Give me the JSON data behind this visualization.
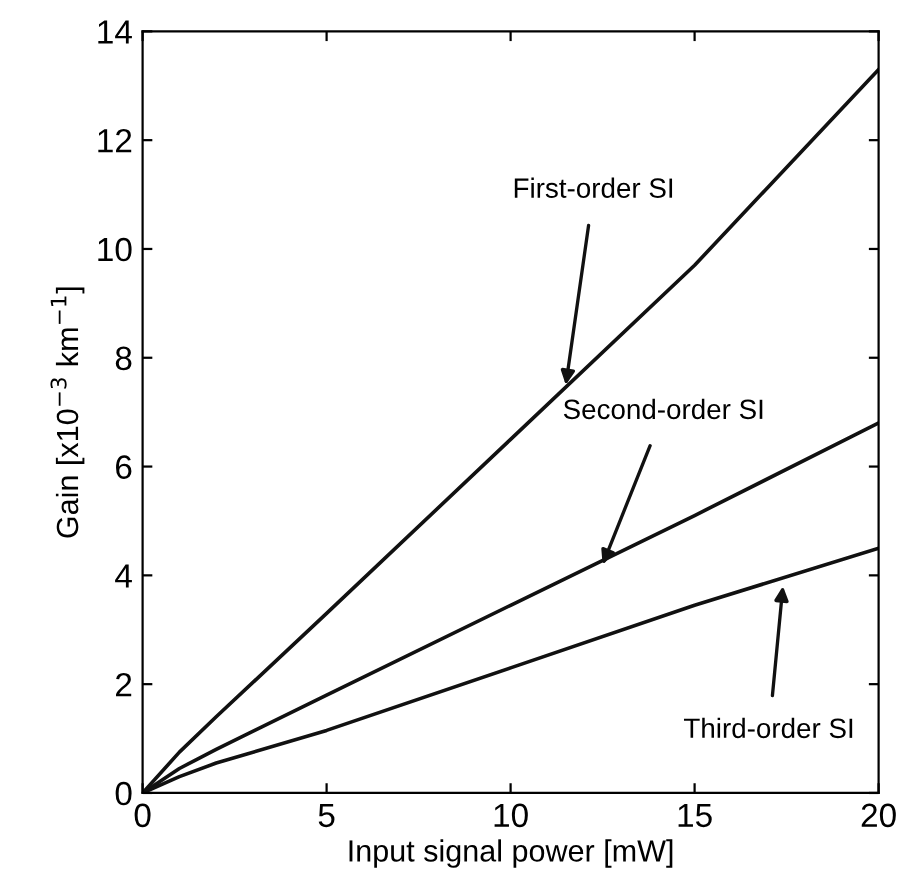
{
  "chart_data": {
    "type": "line",
    "xlabel": "Input signal power [mW]",
    "ylabel": "Gain [x10$^{−3}$ km$^{−1}$]",
    "x": [
      0,
      1,
      2,
      5,
      10,
      15,
      20
    ],
    "series": [
      {
        "color": "#111111",
        "values": [
          0,
          0.75,
          1.4,
          3.3,
          6.5,
          9.7,
          13.3
        ]
      },
      {
        "color": "#111111",
        "values": [
          0,
          0.45,
          0.8,
          1.8,
          3.45,
          5.1,
          6.8
        ]
      },
      {
        "color": "#111111",
        "values": [
          0,
          0.3,
          0.55,
          1.15,
          2.3,
          3.45,
          4.5
        ]
      }
    ],
    "xlim": [
      0,
      20
    ],
    "xticks": [
      0,
      5,
      10,
      15,
      20
    ],
    "ylim": [
      0,
      14
    ],
    "yticks": [
      0,
      2,
      4,
      6,
      8,
      10,
      12,
      14
    ],
    "grid": false,
    "marker": "none",
    "line_style": "solid",
    "annotations": [
      {
        "text": "First-order SI",
        "x": 11.5,
        "y": 7.5
      },
      {
        "text": "Second-order SI",
        "x": 12.5,
        "y": 4.2
      },
      {
        "text": "Third-order SI",
        "x": 17.4,
        "y": 3.8
      }
    ]
  }
}
